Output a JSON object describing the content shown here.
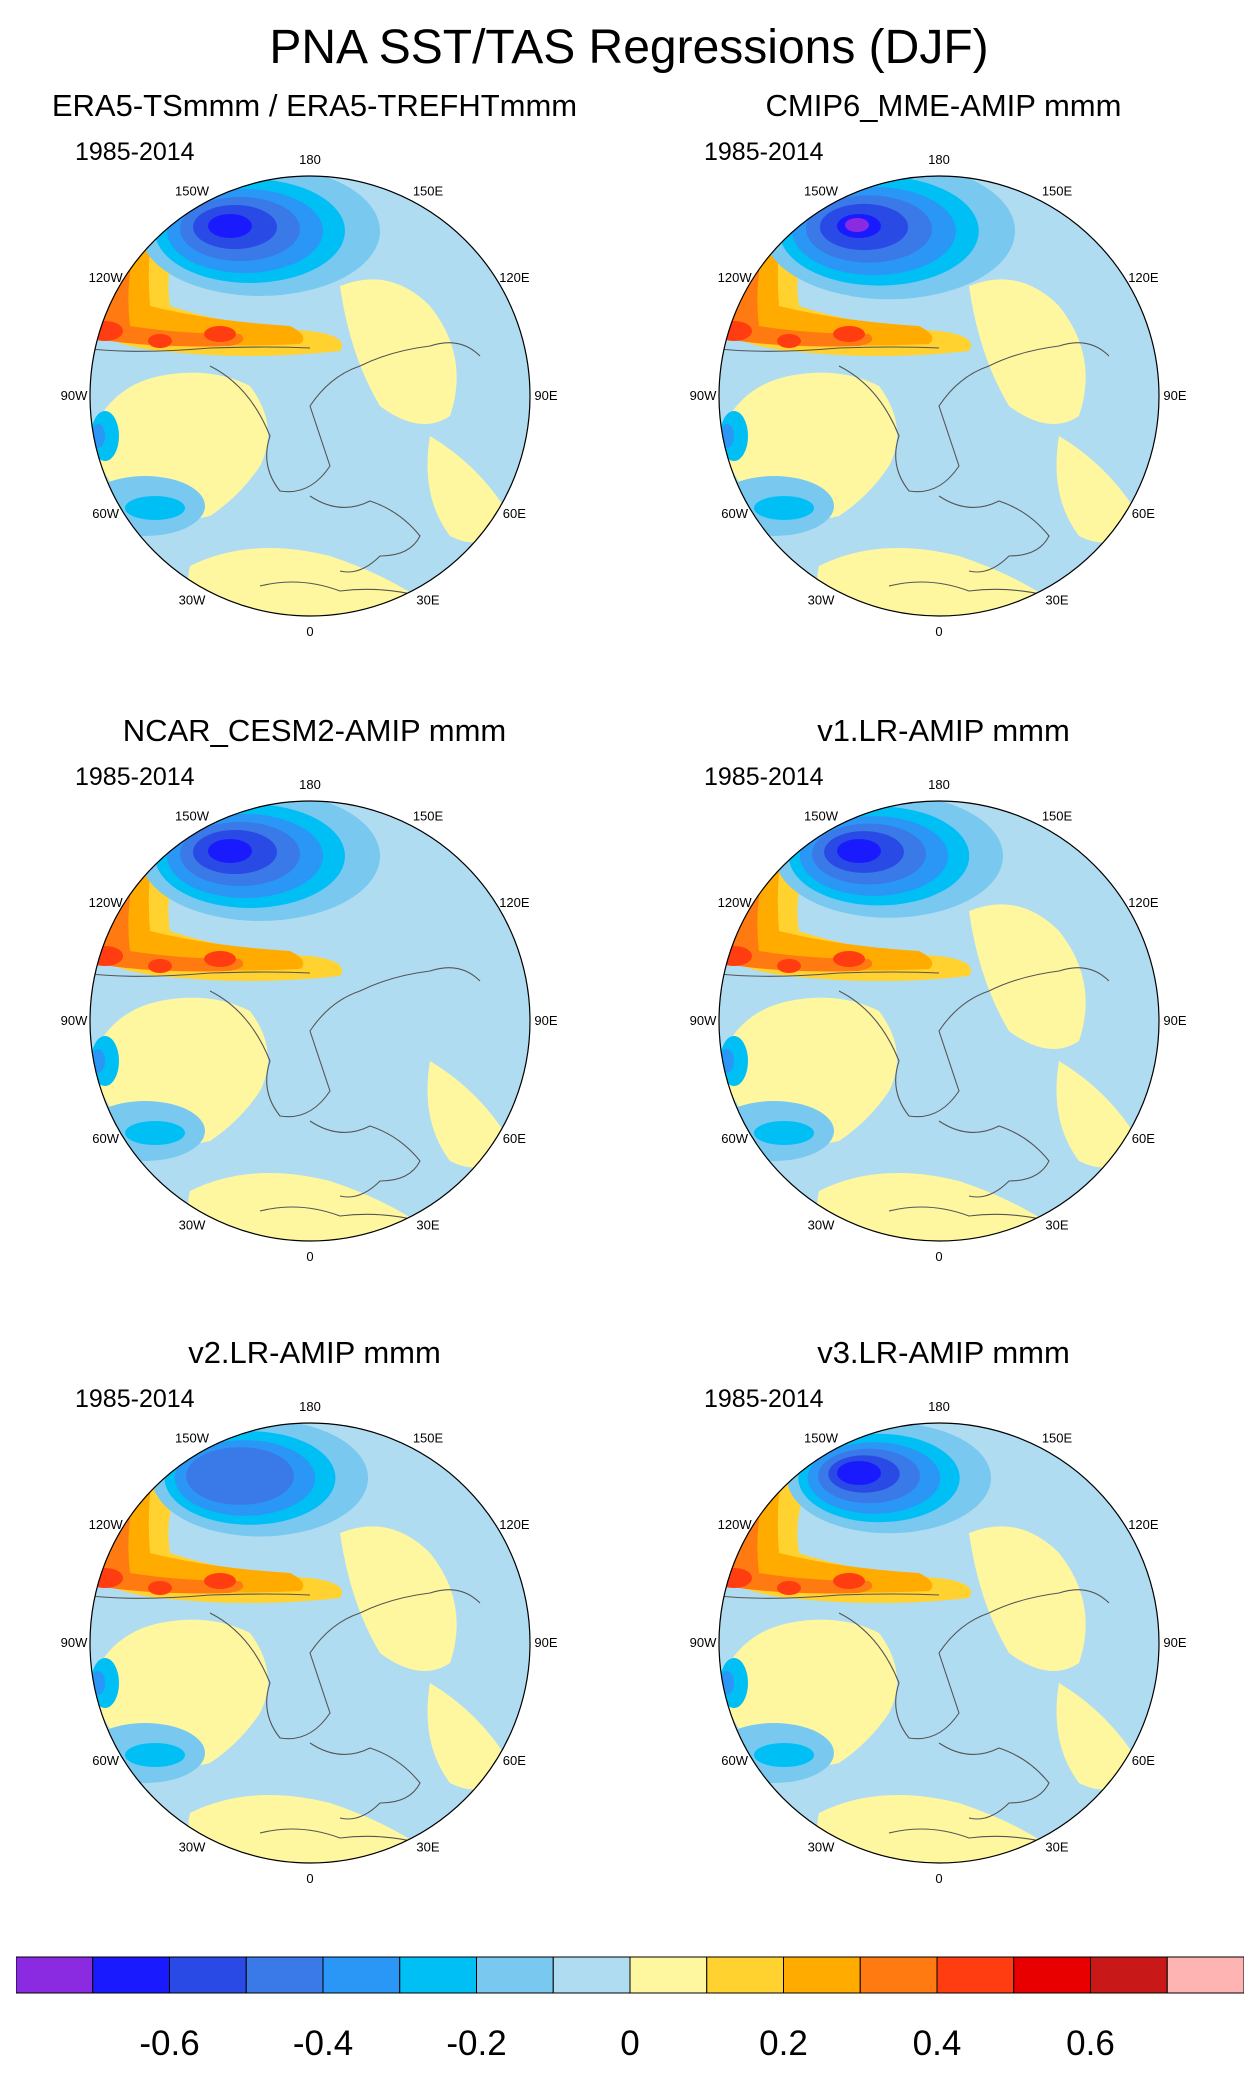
{
  "title": "PNA SST/TAS Regressions (DJF)",
  "panels": [
    {
      "title": "ERA5-TSmmm / ERA5-TREFHTmmm",
      "period": "1985-2014",
      "variant": 0
    },
    {
      "title": "CMIP6_MME-AMIP  mmm",
      "period": "1985-2014",
      "variant": 1
    },
    {
      "title": "NCAR_CESM2-AMIP  mmm",
      "period": "1985-2014",
      "variant": 2
    },
    {
      "title": "v1.LR-AMIP  mmm",
      "period": "1985-2014",
      "variant": 3
    },
    {
      "title": "v2.LR-AMIP  mmm",
      "period": "1985-2014",
      "variant": 4
    },
    {
      "title": "v3.LR-AMIP  mmm",
      "period": "1985-2014",
      "variant": 5
    }
  ],
  "longitude_labels": [
    "180",
    "150E",
    "120E",
    "90E",
    "60E",
    "30E",
    "0",
    "30W",
    "60W",
    "90W",
    "120W",
    "150W"
  ],
  "colorbar": {
    "colors": [
      "#8a2be2",
      "#1a1aff",
      "#2a4ae6",
      "#3a7ae8",
      "#2a96f5",
      "#00bff5",
      "#78c8f0",
      "#b0dcf2",
      "#fff7a0",
      "#ffd230",
      "#ffab00",
      "#ff7a10",
      "#ff3d10",
      "#e80000",
      "#c81818",
      "#ffb4b4"
    ],
    "tick_labels": [
      "-0.6",
      "-0.4",
      "-0.2",
      "0",
      "0.2",
      "0.4",
      "0.6"
    ]
  }
}
